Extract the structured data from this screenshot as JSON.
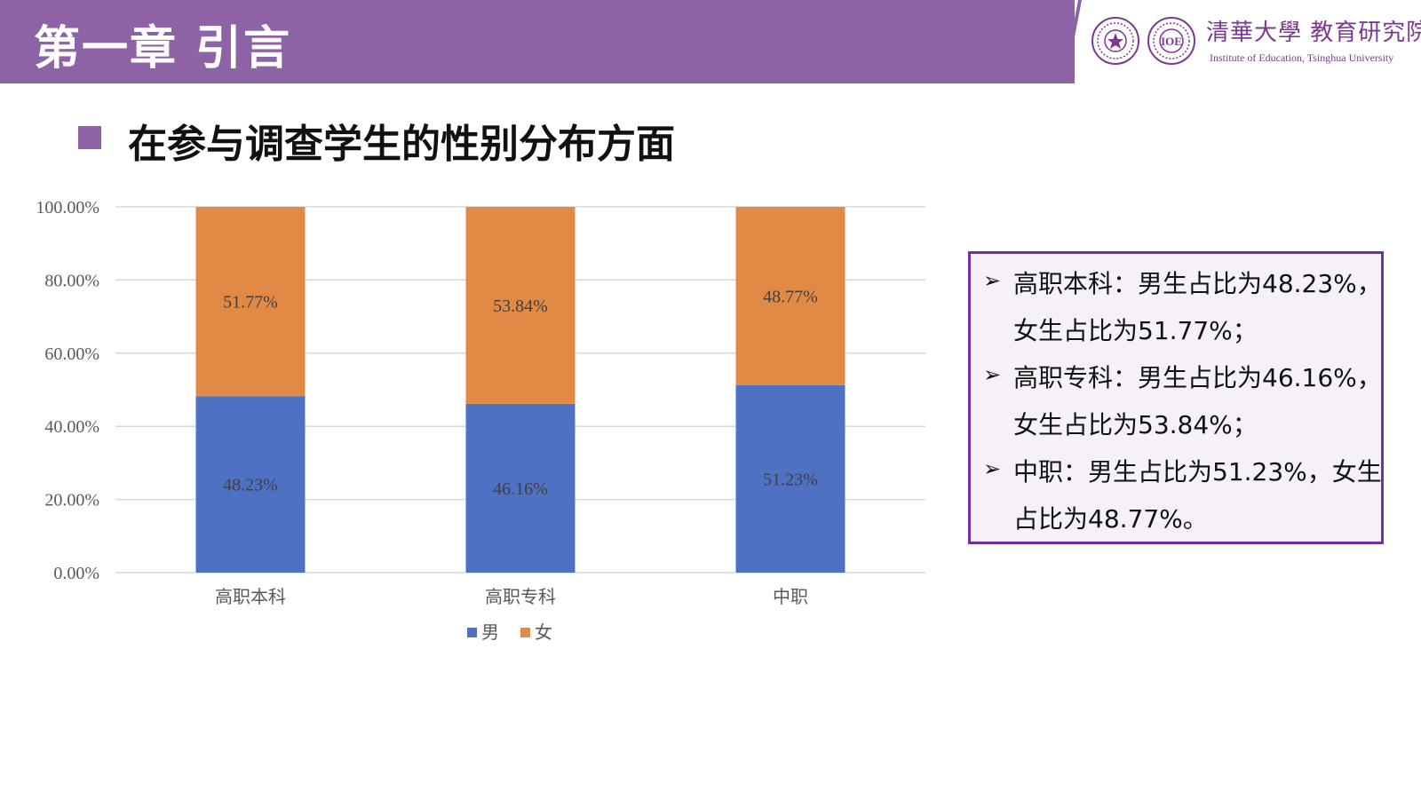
{
  "header": {
    "chapter_title": "第一章  引言",
    "logo_cn": "清華大學 教育研究院",
    "logo_en": "Institute of Education, Tsinghua University",
    "seal_2_text": "IOE",
    "banner_color": "#8E63A6"
  },
  "section": {
    "heading": "在参与调查学生的性别分布方面"
  },
  "chart_data": {
    "type": "bar",
    "stacked": true,
    "categories": [
      "高职本科",
      "高职专科",
      "中职"
    ],
    "series": [
      {
        "name": "男",
        "values": [
          48.23,
          46.16,
          51.23
        ],
        "labels": [
          "48.23%",
          "46.16%",
          "51.23%"
        ],
        "color": "#4F71C4"
      },
      {
        "name": "女",
        "values": [
          51.77,
          53.84,
          48.77
        ],
        "labels": [
          "51.77%",
          "53.84%",
          "48.77%"
        ],
        "color": "#E18A45"
      }
    ],
    "ylim": [
      0,
      100
    ],
    "yticks": [
      0,
      20,
      40,
      60,
      80,
      100
    ],
    "ytick_labels": [
      "0.00%",
      "20.00%",
      "40.00%",
      "60.00%",
      "80.00%",
      "100.00%"
    ],
    "grid": true,
    "legend": "bottom"
  },
  "summary": {
    "lines": [
      "高职本科：男生占比为48.23%，",
      "女生占比为51.77%；",
      "高职专科：男生占比为46.16%，",
      "女生占比为53.84%；",
      "中职：男生占比为51.23%，女生",
      "占比为48.77%。"
    ],
    "arrow": "➢"
  }
}
